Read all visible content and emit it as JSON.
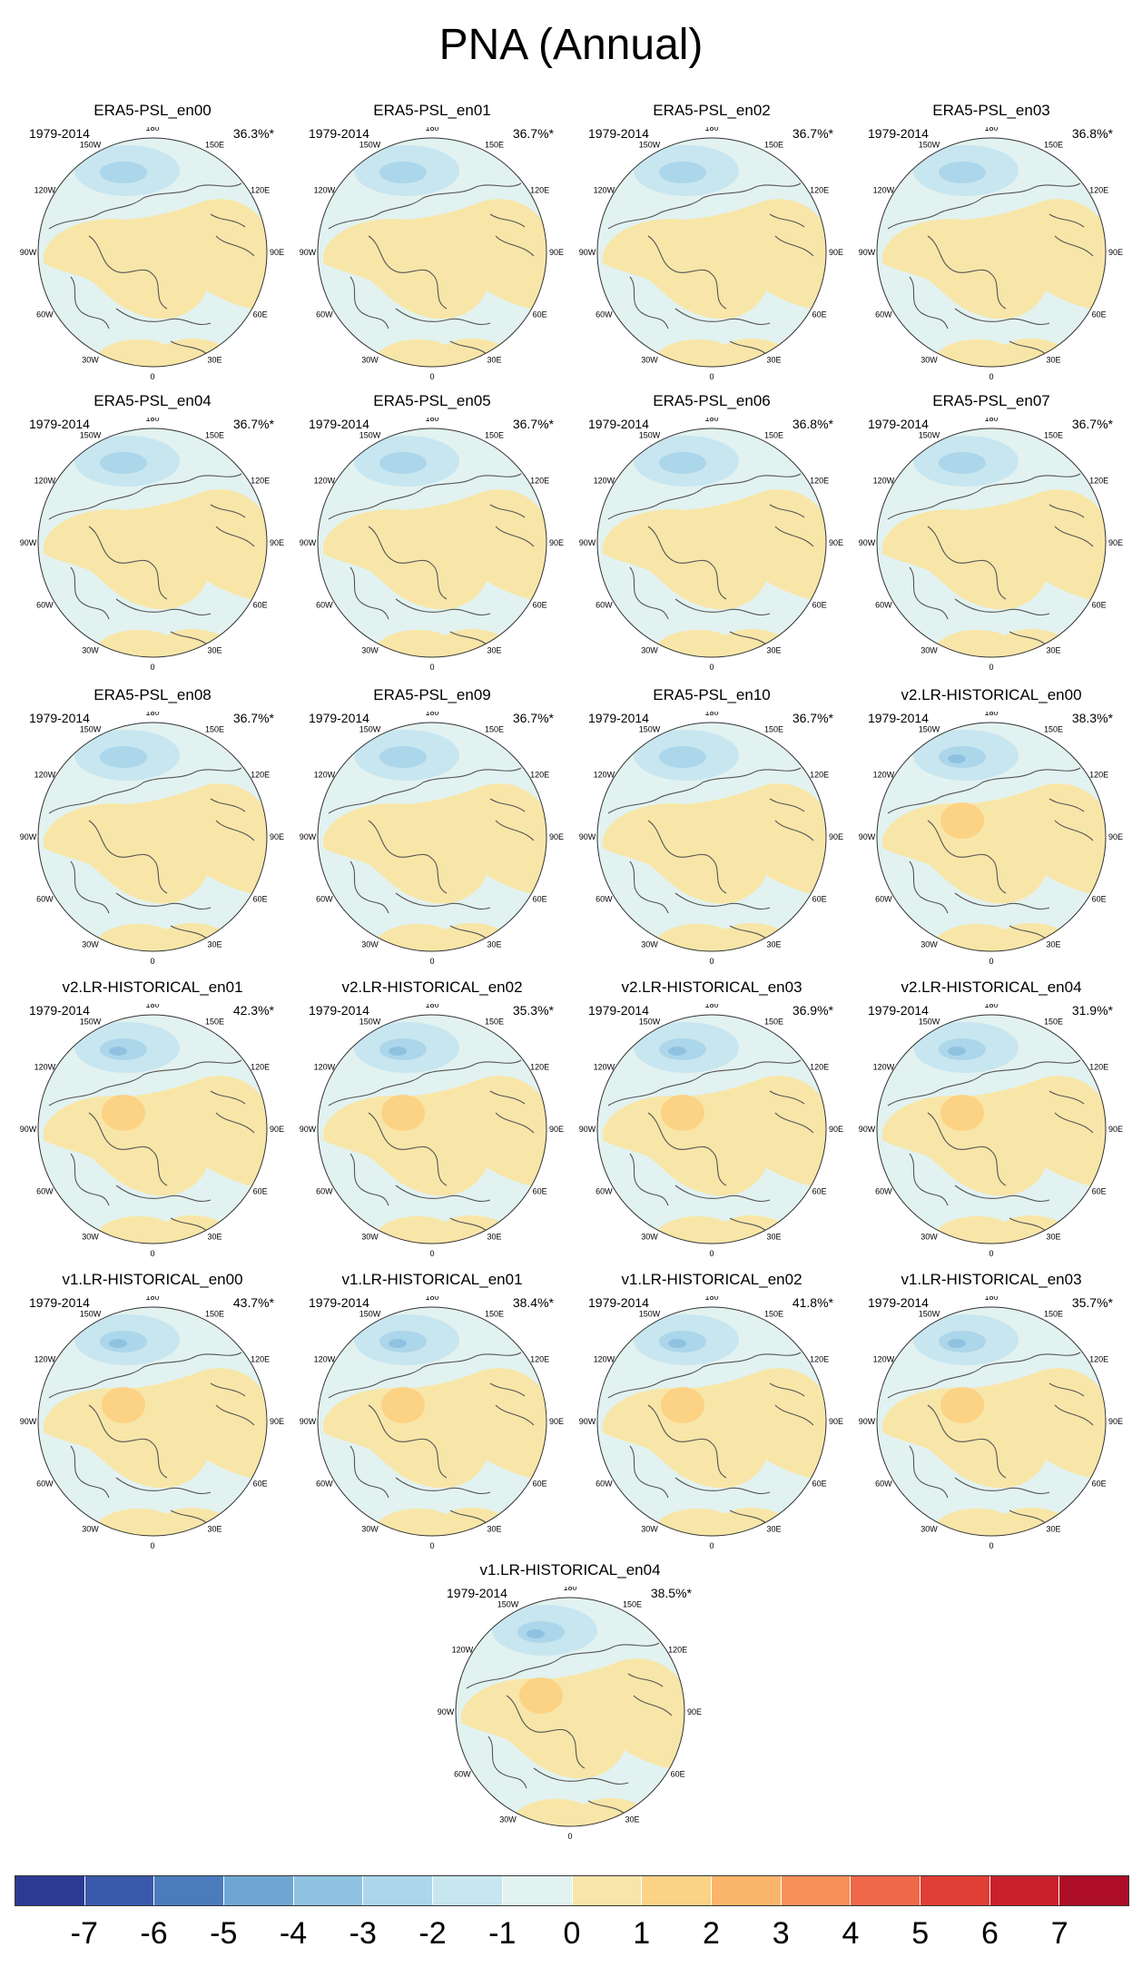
{
  "title": "PNA (Annual)",
  "period": "1979-2014",
  "lon_labels": [
    "180",
    "150E",
    "120E",
    "90E",
    "60E",
    "30E",
    "0",
    "30W",
    "60W",
    "90W",
    "120W",
    "150W"
  ],
  "panels": [
    {
      "name": "ERA5-PSL_en00",
      "pct": "36.3%*",
      "variant": "era"
    },
    {
      "name": "ERA5-PSL_en01",
      "pct": "36.7%*",
      "variant": "era"
    },
    {
      "name": "ERA5-PSL_en02",
      "pct": "36.7%*",
      "variant": "era"
    },
    {
      "name": "ERA5-PSL_en03",
      "pct": "36.8%*",
      "variant": "era"
    },
    {
      "name": "ERA5-PSL_en04",
      "pct": "36.7%*",
      "variant": "era"
    },
    {
      "name": "ERA5-PSL_en05",
      "pct": "36.7%*",
      "variant": "era"
    },
    {
      "name": "ERA5-PSL_en06",
      "pct": "36.8%*",
      "variant": "era"
    },
    {
      "name": "ERA5-PSL_en07",
      "pct": "36.7%*",
      "variant": "era"
    },
    {
      "name": "ERA5-PSL_en08",
      "pct": "36.7%*",
      "variant": "era"
    },
    {
      "name": "ERA5-PSL_en09",
      "pct": "36.7%*",
      "variant": "era"
    },
    {
      "name": "ERA5-PSL_en10",
      "pct": "36.7%*",
      "variant": "era"
    },
    {
      "name": "v2.LR-HISTORICAL_en00",
      "pct": "38.3%*",
      "variant": "model"
    },
    {
      "name": "v2.LR-HISTORICAL_en01",
      "pct": "42.3%*",
      "variant": "model"
    },
    {
      "name": "v2.LR-HISTORICAL_en02",
      "pct": "35.3%*",
      "variant": "model"
    },
    {
      "name": "v2.LR-HISTORICAL_en03",
      "pct": "36.9%*",
      "variant": "model"
    },
    {
      "name": "v2.LR-HISTORICAL_en04",
      "pct": "31.9%*",
      "variant": "model"
    },
    {
      "name": "v1.LR-HISTORICAL_en00",
      "pct": "43.7%*",
      "variant": "model"
    },
    {
      "name": "v1.LR-HISTORICAL_en01",
      "pct": "38.4%*",
      "variant": "model"
    },
    {
      "name": "v1.LR-HISTORICAL_en02",
      "pct": "41.8%*",
      "variant": "model"
    },
    {
      "name": "v1.LR-HISTORICAL_en03",
      "pct": "35.7%*",
      "variant": "model"
    },
    {
      "name": "v1.LR-HISTORICAL_en04",
      "pct": "38.5%*",
      "variant": "model"
    }
  ],
  "colorbar": {
    "labels": [
      "-7",
      "-6",
      "-5",
      "-4",
      "-3",
      "-2",
      "-1",
      "0",
      "1",
      "2",
      "3",
      "4",
      "5",
      "6",
      "7"
    ],
    "colors": [
      "#2c3a94",
      "#3b59ab",
      "#4a7bbd",
      "#6ea6d2",
      "#8fc2e0",
      "#acd6ea",
      "#c8e6f0",
      "#e2f2f0",
      "#f8e6a8",
      "#fcd285",
      "#fbb56b",
      "#f8905a",
      "#ef6848",
      "#df3f35",
      "#c9202c",
      "#ad0d26"
    ]
  }
}
